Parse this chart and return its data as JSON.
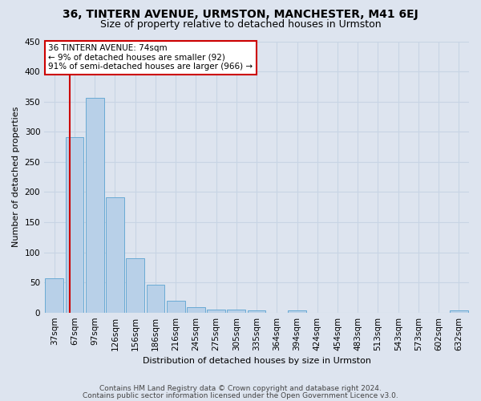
{
  "title": "36, TINTERN AVENUE, URMSTON, MANCHESTER, M41 6EJ",
  "subtitle": "Size of property relative to detached houses in Urmston",
  "xlabel": "Distribution of detached houses by size in Urmston",
  "ylabel": "Number of detached properties",
  "categories": [
    "37sqm",
    "67sqm",
    "97sqm",
    "126sqm",
    "156sqm",
    "186sqm",
    "216sqm",
    "245sqm",
    "275sqm",
    "305sqm",
    "335sqm",
    "364sqm",
    "394sqm",
    "424sqm",
    "454sqm",
    "483sqm",
    "513sqm",
    "543sqm",
    "573sqm",
    "602sqm",
    "632sqm"
  ],
  "values": [
    57,
    291,
    356,
    191,
    90,
    46,
    19,
    9,
    5,
    5,
    3,
    0,
    4,
    0,
    0,
    0,
    0,
    0,
    0,
    0,
    4
  ],
  "bar_color": "#b8d0e8",
  "bar_edge_color": "#6aaad4",
  "grid_color": "#c8d4e4",
  "background_color": "#dde4ef",
  "vline_color": "#cc0000",
  "vline_x": 0.77,
  "annotation_text": "36 TINTERN AVENUE: 74sqm\n← 9% of detached houses are smaller (92)\n91% of semi-detached houses are larger (966) →",
  "annotation_box_color": "#ffffff",
  "annotation_box_edge": "#cc0000",
  "ylim": [
    0,
    450
  ],
  "yticks": [
    0,
    50,
    100,
    150,
    200,
    250,
    300,
    350,
    400,
    450
  ],
  "footer_line1": "Contains HM Land Registry data © Crown copyright and database right 2024.",
  "footer_line2": "Contains public sector information licensed under the Open Government Licence v3.0.",
  "title_fontsize": 10,
  "subtitle_fontsize": 9,
  "axis_label_fontsize": 8,
  "tick_fontsize": 7.5,
  "annotation_fontsize": 7.5,
  "footer_fontsize": 6.5
}
